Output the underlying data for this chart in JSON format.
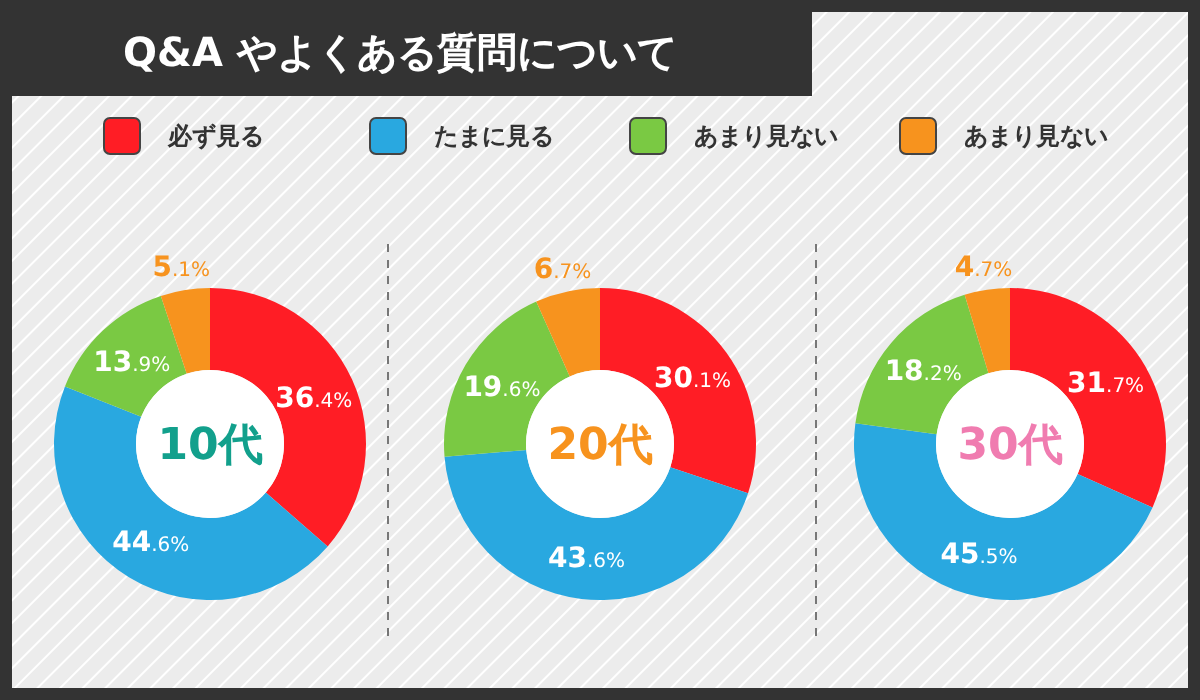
{
  "chart_data": [
    {
      "type": "donut",
      "title": "10代",
      "annotations": [
        "Q&A やよくある質問について"
      ],
      "legend": "top",
      "categories": [
        "必ず見る",
        "たまに見る",
        "あまり見ない",
        "あまり見ない"
      ],
      "values": [
        36.4,
        44.6,
        13.9,
        5.1
      ],
      "value_labels": [
        "36.4%",
        "44.6%",
        "13.9%",
        "5.1%"
      ],
      "colors": [
        "#ff1d25",
        "#29a8e0",
        "#7ac943",
        "#f7931e"
      ]
    },
    {
      "type": "donut",
      "title": "20代",
      "categories": [
        null,
        null,
        null,
        null
      ],
      "values": [
        30.1,
        43.6,
        19.6,
        6.7
      ],
      "value_labels": [
        "30.1%",
        "43.6%",
        "19.6%",
        "6.7%"
      ],
      "colors": [
        "#ff1d25",
        "#29a8e0",
        "#7ac943",
        "#f7931e"
      ]
    },
    {
      "type": "donut",
      "title": "30代",
      "categories": [
        null,
        null,
        null,
        null
      ],
      "values": [
        31.7,
        45.5,
        18.2,
        4.7
      ],
      "value_labels": [
        "31.7%",
        "45.5%",
        "18.2%",
        "4.7%"
      ],
      "colors": [
        "#ff1d25",
        "#29a8e0",
        "#7ac943",
        "#f7931e"
      ]
    }
  ]
}
